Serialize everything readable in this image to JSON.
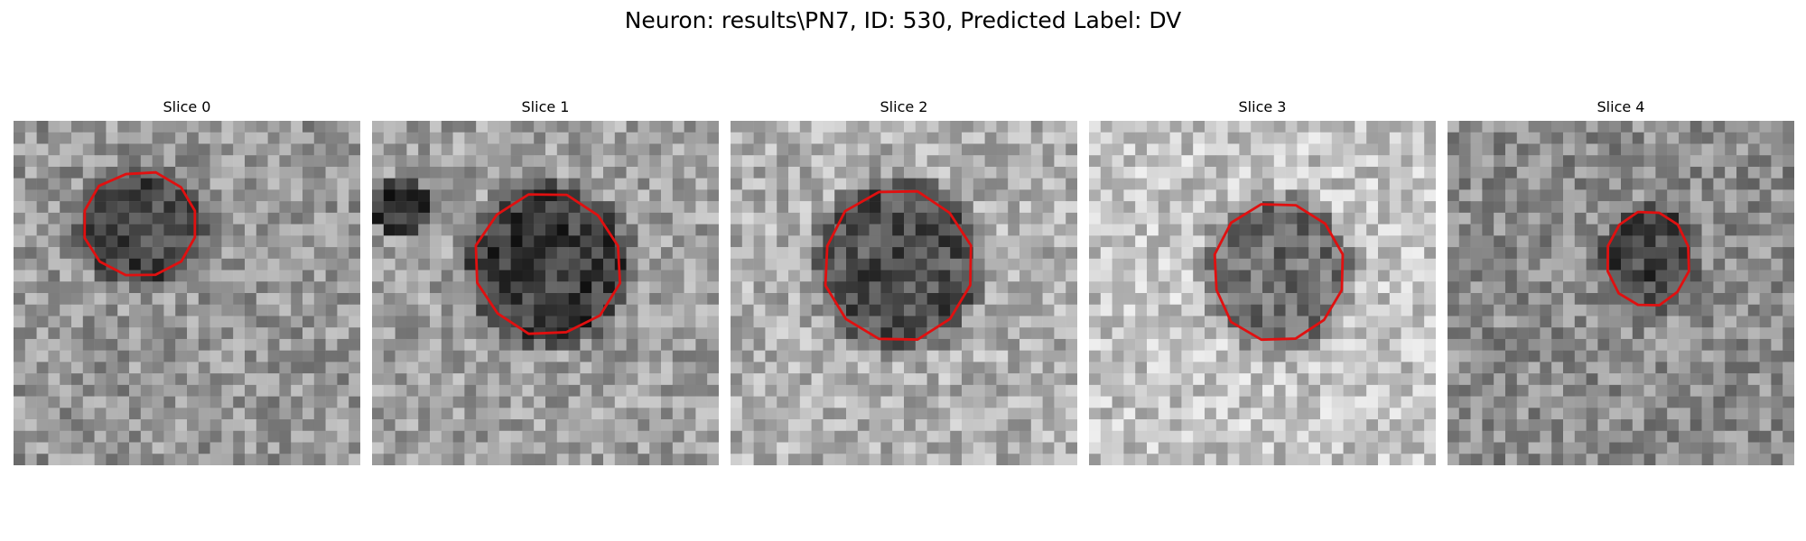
{
  "figure": {
    "title": "Neuron: results\\PN7, ID: 530, Predicted Label: DV"
  },
  "panels": [
    {
      "title": "Slice 0",
      "contour_color": "#e01010"
    },
    {
      "title": "Slice 1",
      "contour_color": "#e01010"
    },
    {
      "title": "Slice 2",
      "contour_color": "#e01010"
    },
    {
      "title": "Slice 3",
      "contour_color": "#e01010"
    },
    {
      "title": "Slice 4",
      "contour_color": "#e01010"
    }
  ],
  "image_style": {
    "colormap": "gray",
    "grid": "30x30 pixels",
    "contour": "red outline of neuron boundary"
  }
}
